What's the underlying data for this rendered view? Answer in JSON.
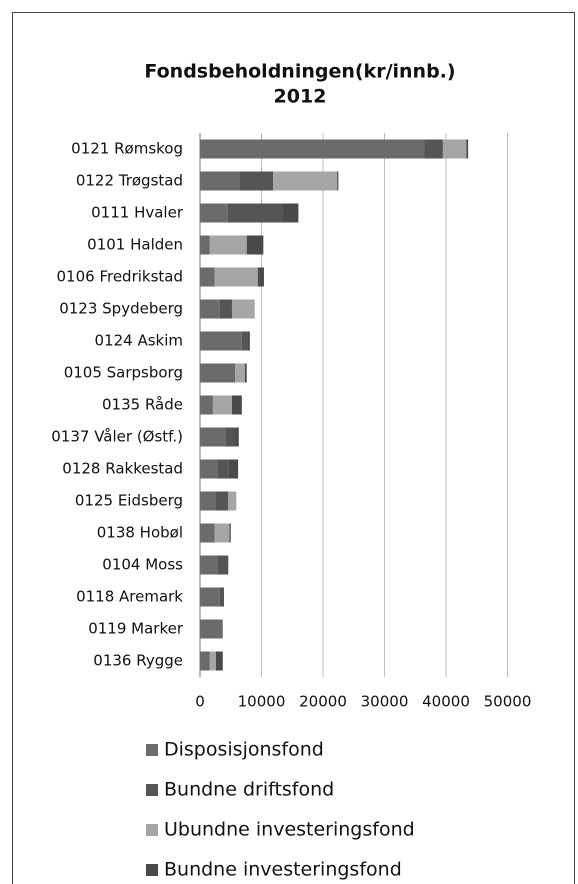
{
  "chart_data": {
    "type": "bar",
    "orientation": "horizontal",
    "stacked": true,
    "title": "Fondsbeholdningen(kr/innb.)",
    "subtitle": "2012",
    "categories": [
      "0121 Rømskog",
      "0122 Trøgstad",
      "0111 Hvaler",
      "0101 Halden",
      "0106 Fredrikstad",
      "0123 Spydeberg",
      "0124 Askim",
      "0105 Sarpsborg",
      "0135 Råde",
      "0137 Våler (Østf.)",
      "0128 Rakkestad",
      "0125 Eidsberg",
      "0138 Hobøl",
      "0104 Moss",
      "0118 Aremark",
      "0119 Marker",
      "0136 Rygge"
    ],
    "series": [
      {
        "name": "Disposisjonsfond",
        "color": "#6b6b6b",
        "values": [
          36500,
          6500,
          4500,
          1600,
          2400,
          3200,
          6800,
          5700,
          2100,
          4100,
          2800,
          2600,
          2400,
          2800,
          3200,
          3700,
          1600
        ]
      },
      {
        "name": "Bundne driftsfond",
        "color": "#555555",
        "values": [
          3000,
          5400,
          9000,
          0,
          0,
          2000,
          1000,
          0,
          0,
          1600,
          1800,
          2000,
          0,
          1800,
          700,
          0,
          0
        ]
      },
      {
        "name": "Ubundne investeringsfond",
        "color": "#a6a6a6",
        "values": [
          3800,
          10400,
          0,
          6000,
          7000,
          3700,
          0,
          1600,
          3100,
          0,
          0,
          1300,
          2400,
          0,
          0,
          0,
          1000
        ]
      },
      {
        "name": "Bundne investeringsfond",
        "color": "#4a4a4a",
        "values": [
          300,
          200,
          2500,
          2700,
          1000,
          0,
          300,
          300,
          1600,
          600,
          1600,
          0,
          200,
          0,
          0,
          0,
          1100
        ]
      }
    ],
    "xlim": [
      0,
      50000
    ],
    "xticks": [
      0,
      10000,
      20000,
      30000,
      40000,
      50000
    ],
    "grid": true,
    "legend": "bottom"
  }
}
